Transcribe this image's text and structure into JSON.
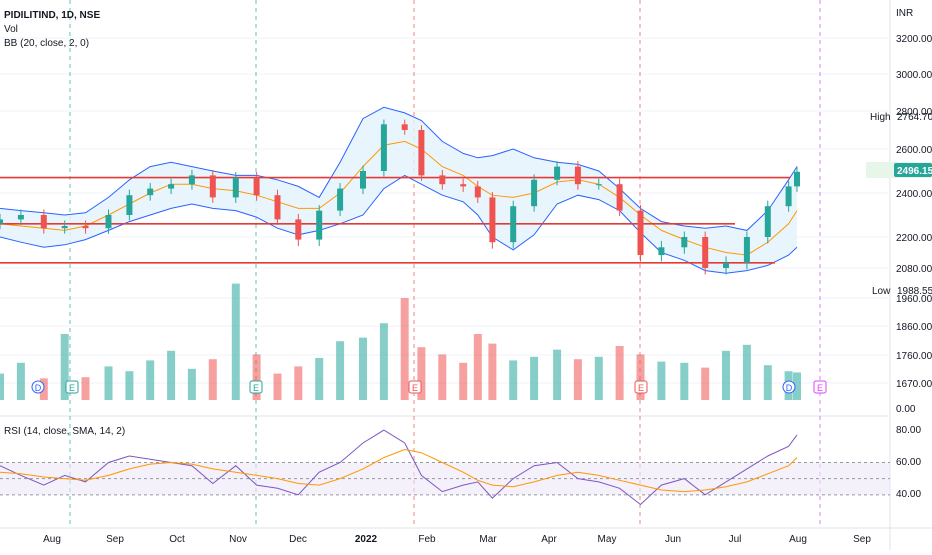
{
  "header": {
    "symbol_line": "PIDILITIND, 1D, NSE",
    "vol_label": "Vol",
    "bb_label": "BB (20, close, 2, 0)",
    "rsi_label": "RSI (14, close, SMA, 14, 2)",
    "currency": "INR"
  },
  "badges": {
    "high_label": "High",
    "high_value": "2764.70",
    "last_value": "2496.15",
    "low_label": "Low",
    "low_value": "1988.55"
  },
  "colors": {
    "up": "#26a69a",
    "down": "#ef5350",
    "bb_band": "#2962ff",
    "bb_basis": "#ff9800",
    "bb_fill": "#e3f2fd",
    "rsi_line": "#7e57c2",
    "rsi_ma": "#ff9800",
    "hline": "#e53935",
    "last_badge": "#26a69a"
  },
  "chart_data": [
    {
      "type": "line",
      "panel": "price",
      "title": "PIDILITIND, 1D, NSE",
      "ylabel": "INR",
      "ylim": [
        1640,
        3300
      ],
      "y_ticks": [
        "1670.00",
        "1760.00",
        "1860.00",
        "1960.00",
        "2080.00",
        "2200.00",
        "2400.00",
        "2600.00",
        "2800.00",
        "3000.00",
        "3200.00"
      ],
      "x_ticks": [
        "Aug",
        "Sep",
        "Oct",
        "Nov",
        "Dec",
        "2022",
        "Feb",
        "Mar",
        "Apr",
        "May",
        "Jun",
        "Jul",
        "Aug",
        "Sep"
      ],
      "close_series": [
        {
          "date": "2021-07-15",
          "close": 2280
        },
        {
          "date": "2021-07-25",
          "close": 2300
        },
        {
          "date": "2021-08-05",
          "close": 2240
        },
        {
          "date": "2021-08-15",
          "close": 2250
        },
        {
          "date": "2021-08-25",
          "close": 2240
        },
        {
          "date": "2021-09-05",
          "close": 2300
        },
        {
          "date": "2021-09-15",
          "close": 2390
        },
        {
          "date": "2021-09-25",
          "close": 2420
        },
        {
          "date": "2021-10-05",
          "close": 2440
        },
        {
          "date": "2021-10-15",
          "close": 2480
        },
        {
          "date": "2021-10-25",
          "close": 2380
        },
        {
          "date": "2021-11-05",
          "close": 2470
        },
        {
          "date": "2021-11-15",
          "close": 2390
        },
        {
          "date": "2021-11-25",
          "close": 2280
        },
        {
          "date": "2021-12-05",
          "close": 2190
        },
        {
          "date": "2021-12-15",
          "close": 2320
        },
        {
          "date": "2021-12-25",
          "close": 2420
        },
        {
          "date": "2022-01-05",
          "close": 2500
        },
        {
          "date": "2022-01-15",
          "close": 2730
        },
        {
          "date": "2022-01-25",
          "close": 2700
        },
        {
          "date": "2022-02-02",
          "close": 2480
        },
        {
          "date": "2022-02-12",
          "close": 2440
        },
        {
          "date": "2022-02-22",
          "close": 2430
        },
        {
          "date": "2022-03-01",
          "close": 2380
        },
        {
          "date": "2022-03-08",
          "close": 2180
        },
        {
          "date": "2022-03-18",
          "close": 2340
        },
        {
          "date": "2022-03-28",
          "close": 2460
        },
        {
          "date": "2022-04-08",
          "close": 2520
        },
        {
          "date": "2022-04-18",
          "close": 2440
        },
        {
          "date": "2022-04-28",
          "close": 2440
        },
        {
          "date": "2022-05-08",
          "close": 2320
        },
        {
          "date": "2022-05-18",
          "close": 2130
        },
        {
          "date": "2022-05-28",
          "close": 2160
        },
        {
          "date": "2022-06-08",
          "close": 2200
        },
        {
          "date": "2022-06-18",
          "close": 2080
        },
        {
          "date": "2022-06-28",
          "close": 2100
        },
        {
          "date": "2022-07-08",
          "close": 2200
        },
        {
          "date": "2022-07-18",
          "close": 2340
        },
        {
          "date": "2022-07-28",
          "close": 2430
        },
        {
          "date": "2022-08-01",
          "close": 2496.15
        }
      ],
      "bollinger_upper": [
        2330,
        2320,
        2310,
        2300,
        2310,
        2380,
        2460,
        2520,
        2540,
        2520,
        2500,
        2480,
        2480,
        2460,
        2430,
        2380,
        2540,
        2760,
        2820,
        2790,
        2750,
        2640,
        2580,
        2560,
        2570,
        2600,
        2560,
        2540,
        2530,
        2500,
        2420,
        2330,
        2270,
        2250,
        2240,
        2250,
        2230,
        2320,
        2460,
        2520
      ],
      "bollinger_basis": [
        2260,
        2250,
        2240,
        2230,
        2250,
        2300,
        2350,
        2400,
        2440,
        2440,
        2420,
        2410,
        2390,
        2360,
        2330,
        2330,
        2400,
        2520,
        2620,
        2640,
        2600,
        2520,
        2480,
        2430,
        2390,
        2380,
        2400,
        2450,
        2460,
        2440,
        2380,
        2300,
        2230,
        2190,
        2160,
        2140,
        2130,
        2180,
        2260,
        2320
      ],
      "bollinger_lower": [
        2200,
        2180,
        2160,
        2170,
        2190,
        2230,
        2270,
        2300,
        2330,
        2350,
        2330,
        2320,
        2290,
        2240,
        2210,
        2230,
        2260,
        2300,
        2420,
        2480,
        2440,
        2390,
        2360,
        2300,
        2200,
        2150,
        2210,
        2350,
        2390,
        2370,
        2320,
        2220,
        2140,
        2110,
        2070,
        2060,
        2070,
        2090,
        2130,
        2160
      ],
      "horizontal_levels": [
        2470,
        2260,
        2100
      ],
      "high": 2764.7,
      "low": 1988.55
    },
    {
      "type": "bar",
      "panel": "volume",
      "title": "Vol",
      "values": [
        0.22,
        0.31,
        0.18,
        0.55,
        0.19,
        0.28,
        0.24,
        0.33,
        0.41,
        0.26,
        0.34,
        0.97,
        0.38,
        0.22,
        0.28,
        0.35,
        0.49,
        0.52,
        0.64,
        0.85,
        0.44,
        0.38,
        0.31,
        0.55,
        0.47,
        0.33,
        0.36,
        0.42,
        0.34,
        0.36,
        0.45,
        0.38,
        0.32,
        0.31,
        0.27,
        0.41,
        0.46,
        0.29,
        0.24,
        0.23
      ]
    },
    {
      "type": "line",
      "panel": "rsi",
      "title": "RSI (14, close, SMA, 14, 2)",
      "ylim": [
        30,
        85
      ],
      "y_ticks": [
        "40.00",
        "60.00",
        "80.00"
      ],
      "rsi": [
        58,
        52,
        46,
        52,
        48,
        60,
        64,
        62,
        60,
        58,
        47,
        58,
        46,
        44,
        40,
        54,
        60,
        72,
        80,
        72,
        52,
        42,
        46,
        48,
        38,
        50,
        58,
        60,
        50,
        48,
        44,
        34,
        46,
        50,
        40,
        48,
        56,
        64,
        70,
        77
      ],
      "rsi_sma": [
        54,
        53,
        51,
        50,
        49,
        52,
        56,
        59,
        60,
        59,
        56,
        54,
        52,
        50,
        47,
        46,
        50,
        56,
        63,
        68,
        66,
        60,
        54,
        49,
        46,
        45,
        48,
        52,
        54,
        52,
        49,
        46,
        43,
        42,
        43,
        45,
        48,
        53,
        58,
        63
      ]
    }
  ]
}
